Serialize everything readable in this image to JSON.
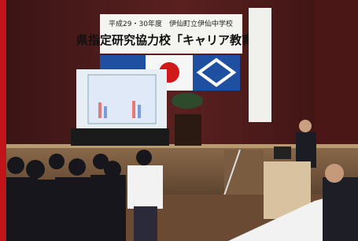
{
  "banner": {
    "line1": "平成29・30年度　伊仙町立伊仙中学校",
    "line2": "県指定研究協力校「キャリア教育」"
  }
}
